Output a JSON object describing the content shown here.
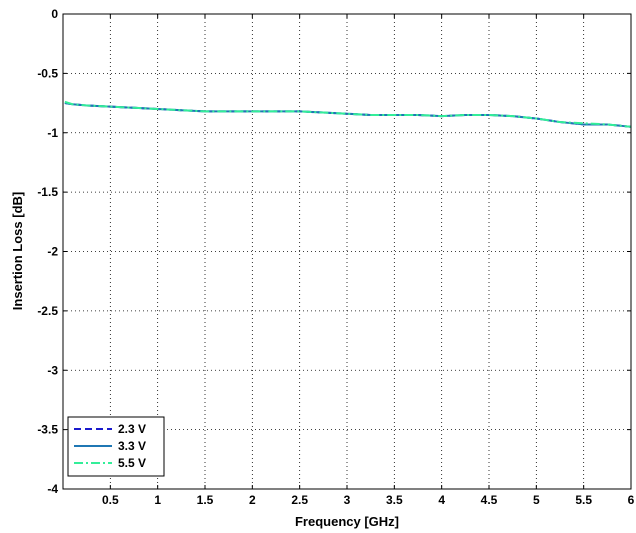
{
  "chart_data": {
    "type": "line",
    "title": "",
    "xlabel": "Frequency [GHz]",
    "ylabel": "Insertion Loss [dB]",
    "xlim": [
      0,
      6
    ],
    "ylim": [
      -4,
      0
    ],
    "xticks": [
      0.5,
      1,
      1.5,
      2,
      2.5,
      3,
      3.5,
      4,
      4.5,
      5,
      5.5,
      6
    ],
    "xtick_labels": [
      "0.5",
      "1",
      "1.5",
      "2",
      "2.5",
      "3",
      "3.5",
      "4",
      "4.5",
      "5",
      "5.5",
      "6"
    ],
    "yticks": [
      0,
      -0.5,
      -1,
      -1.5,
      -2,
      -2.5,
      -3,
      -3.5,
      -4
    ],
    "ytick_labels": [
      "0",
      "-0.5",
      "-1",
      "-1.5",
      "-2",
      "-2.5",
      "-3",
      "-3.5",
      "-4"
    ],
    "grid": true,
    "legend_position": "bottom-left",
    "x": [
      0.02,
      0.1,
      0.25,
      0.5,
      0.75,
      1.0,
      1.25,
      1.5,
      1.75,
      2.0,
      2.25,
      2.5,
      2.75,
      3.0,
      3.25,
      3.5,
      3.75,
      4.0,
      4.25,
      4.5,
      4.75,
      5.0,
      5.25,
      5.5,
      5.75,
      6.0
    ],
    "series": [
      {
        "name": "2.3 V",
        "color": "#1a1acc",
        "dash": "dashed",
        "values": [
          -0.75,
          -0.76,
          -0.77,
          -0.78,
          -0.79,
          -0.8,
          -0.81,
          -0.82,
          -0.82,
          -0.82,
          -0.82,
          -0.82,
          -0.83,
          -0.84,
          -0.85,
          -0.85,
          -0.85,
          -0.86,
          -0.85,
          -0.85,
          -0.86,
          -0.88,
          -0.91,
          -0.93,
          -0.93,
          -0.95
        ]
      },
      {
        "name": "3.3 V",
        "color": "#1f77b4",
        "dash": "solid",
        "values": [
          -0.75,
          -0.76,
          -0.77,
          -0.78,
          -0.79,
          -0.8,
          -0.81,
          -0.82,
          -0.82,
          -0.82,
          -0.82,
          -0.82,
          -0.83,
          -0.84,
          -0.85,
          -0.85,
          -0.85,
          -0.86,
          -0.85,
          -0.85,
          -0.86,
          -0.88,
          -0.91,
          -0.93,
          -0.93,
          -0.95
        ]
      },
      {
        "name": "5.5 V",
        "color": "#33ee99",
        "dash": "dashdot",
        "values": [
          -0.74,
          -0.76,
          -0.77,
          -0.78,
          -0.79,
          -0.8,
          -0.81,
          -0.82,
          -0.82,
          -0.82,
          -0.82,
          -0.82,
          -0.83,
          -0.84,
          -0.85,
          -0.85,
          -0.85,
          -0.86,
          -0.85,
          -0.85,
          -0.86,
          -0.88,
          -0.91,
          -0.92,
          -0.93,
          -0.95
        ]
      }
    ]
  }
}
